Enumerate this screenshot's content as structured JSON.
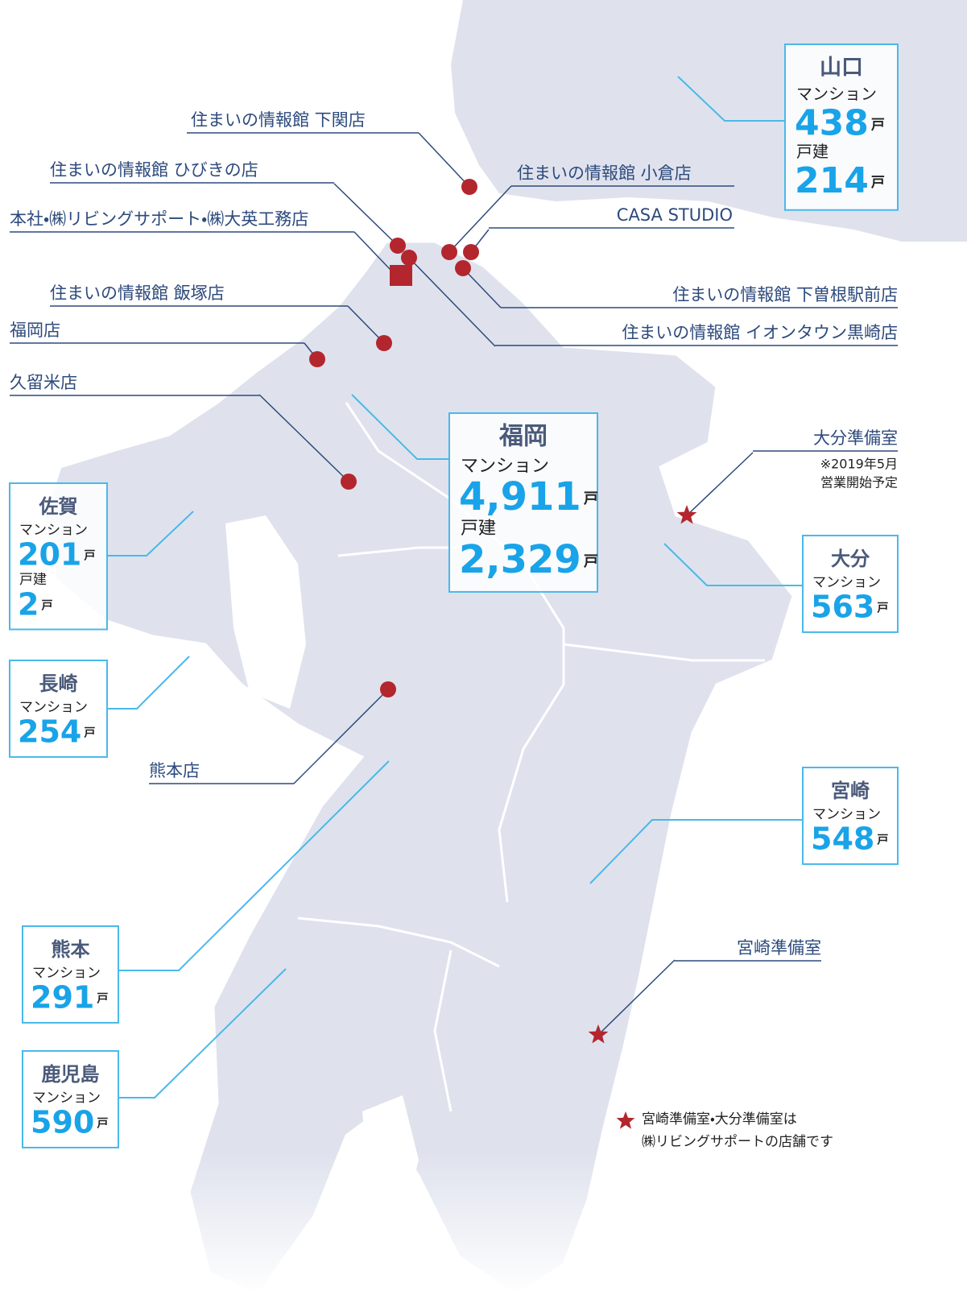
{
  "regions": [
    {
      "name": "山口",
      "rows": [
        {
          "label": "マンション",
          "value": "438",
          "unit": "戸"
        },
        {
          "label": "戸建",
          "value": "214",
          "unit": "戸"
        }
      ]
    },
    {
      "name": "福岡",
      "rows": [
        {
          "label": "マンション",
          "value": "4,911",
          "unit": "戸"
        },
        {
          "label": "戸建",
          "value": "2,329",
          "unit": "戸"
        }
      ]
    },
    {
      "name": "佐賀",
      "rows": [
        {
          "label": "マンション",
          "value": "201",
          "unit": "戸"
        },
        {
          "label": "戸建",
          "value": "2",
          "unit": "戸"
        }
      ]
    },
    {
      "name": "長崎",
      "rows": [
        {
          "label": "マンション",
          "value": "254",
          "unit": "戸"
        }
      ]
    },
    {
      "name": "大分",
      "rows": [
        {
          "label": "マンション",
          "value": "563",
          "unit": "戸"
        }
      ]
    },
    {
      "name": "宮崎",
      "rows": [
        {
          "label": "マンション",
          "value": "548",
          "unit": "戸"
        }
      ]
    },
    {
      "name": "熊本",
      "rows": [
        {
          "label": "マンション",
          "value": "291",
          "unit": "戸"
        }
      ]
    },
    {
      "name": "鹿児島",
      "rows": [
        {
          "label": "マンション",
          "value": "590",
          "unit": "戸"
        }
      ]
    }
  ],
  "stores": [
    "住まいの情報館 下関店",
    "住まいの情報館 ひびきの店",
    "本社・㈱リビングサポート・㈱大英工務店",
    "住まいの情報館 小倉店",
    "CASA STUDIO",
    "住まいの情報館 下曽根駅前店",
    "住まいの情報館 イオンタウン黒崎店",
    "住まいの情報館 飯塚店",
    "福岡店",
    "久留米店",
    "熊本店",
    "大分準備室",
    "宮崎準備室"
  ],
  "oita_note": [
    "※2019年5月",
    "営業開始予定"
  ],
  "legend": [
    "宮崎準備室・大分準備室は",
    "㈱リビングサポートの店舗です"
  ]
}
